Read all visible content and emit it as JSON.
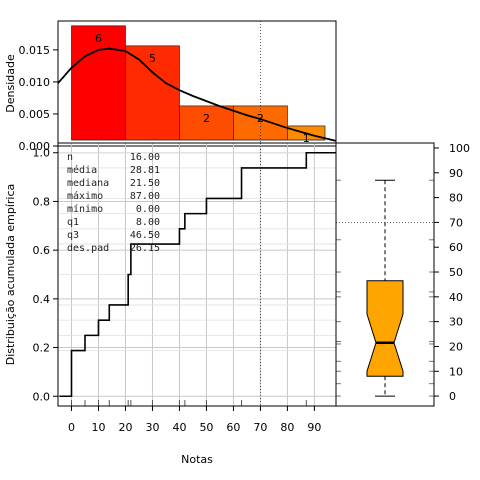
{
  "chart_data": [
    {
      "type": "histogram",
      "ylabel": "Densidade",
      "xlim": [
        -5,
        98
      ],
      "ylim": [
        0,
        0.0195
      ],
      "yticks": [
        0.0,
        0.005,
        0.01,
        0.015
      ],
      "ytick_labels": [
        "0.000",
        "0.005",
        "0.010",
        "0.015"
      ],
      "bins": [
        {
          "from": 0,
          "to": 20,
          "density": 0.01875,
          "count": "6",
          "color": "#ff0000"
        },
        {
          "from": 20,
          "to": 40,
          "density": 0.015625,
          "count": "5",
          "color": "#ff2a00"
        },
        {
          "from": 40,
          "to": 60,
          "density": 0.00625,
          "count": "2",
          "color": "#ff4d00"
        },
        {
          "from": 60,
          "to": 80,
          "density": 0.00625,
          "count": "2",
          "color": "#ff6a00"
        },
        {
          "from": 80,
          "to": 100,
          "density": 0.003125,
          "count": "1",
          "color": "#ff8c00"
        }
      ],
      "density_curve": [
        [
          -5,
          0.0098
        ],
        [
          0,
          0.0122
        ],
        [
          5,
          0.014
        ],
        [
          10,
          0.015
        ],
        [
          14,
          0.0152
        ],
        [
          20,
          0.0148
        ],
        [
          25,
          0.0135
        ],
        [
          30,
          0.0115
        ],
        [
          35,
          0.0098
        ],
        [
          40,
          0.0087
        ],
        [
          45,
          0.0078
        ],
        [
          50,
          0.007
        ],
        [
          55,
          0.0062
        ],
        [
          60,
          0.0055
        ],
        [
          65,
          0.0048
        ],
        [
          70,
          0.0042
        ],
        [
          75,
          0.0035
        ],
        [
          80,
          0.0028
        ],
        [
          85,
          0.0022
        ],
        [
          90,
          0.0016
        ],
        [
          98,
          0.0008
        ]
      ],
      "vline_x": 70
    },
    {
      "type": "line",
      "subtype": "ecdf",
      "xlabel": "Notas",
      "ylabel": "Distribuição acumulada empírica",
      "xlim": [
        -5,
        98
      ],
      "ylim": [
        -0.04,
        1.04
      ],
      "xticks": [
        0,
        10,
        20,
        30,
        40,
        50,
        60,
        70,
        80,
        90
      ],
      "xtick_labels": [
        "0",
        "10",
        "20",
        "30",
        "40",
        "50",
        "60",
        "70",
        "80",
        "90"
      ],
      "yticks": [
        0.0,
        0.2,
        0.4,
        0.6,
        0.8,
        1.0
      ],
      "ytick_labels": [
        "0.0",
        "0.2",
        "0.4",
        "0.6",
        "0.8",
        "1.0"
      ],
      "grid": true,
      "steps": [
        [
          0,
          0.1875
        ],
        [
          5,
          0.25
        ],
        [
          10,
          0.3125
        ],
        [
          14,
          0.375
        ],
        [
          21,
          0.5
        ],
        [
          22,
          0.625
        ],
        [
          30,
          0.625
        ],
        [
          40,
          0.6875
        ],
        [
          42,
          0.75
        ],
        [
          50,
          0.8125
        ],
        [
          63,
          0.9375
        ],
        [
          87,
          1.0
        ]
      ],
      "rug": [
        0,
        5,
        10,
        14,
        21,
        22,
        30,
        40,
        42,
        50,
        63,
        87
      ],
      "vline_x": 70,
      "stats": [
        {
          "label": "n",
          "value": "16.00"
        },
        {
          "label": "média",
          "value": "28.81"
        },
        {
          "label": "mediana",
          "value": "21.50"
        },
        {
          "label": "máximo",
          "value": "87.00"
        },
        {
          "label": "mínimo",
          "value": "0.00"
        },
        {
          "label": "q1",
          "value": "8.00"
        },
        {
          "label": "q3",
          "value": "46.50"
        },
        {
          "label": "des.pad",
          "value": "26.15"
        }
      ]
    },
    {
      "type": "boxplot",
      "ylim": [
        -4,
        102
      ],
      "yticks": [
        0,
        10,
        20,
        30,
        40,
        50,
        60,
        70,
        80,
        90,
        100
      ],
      "ytick_labels": [
        "0",
        "10",
        "20",
        "30",
        "40",
        "50",
        "60",
        "70",
        "80",
        "90",
        "100"
      ],
      "box": {
        "min": 0,
        "q1": 8,
        "median": 21.5,
        "q3": 46.5,
        "max": 87,
        "notch_low": 10,
        "notch_high": 33
      },
      "fill_color": "#ffa500",
      "hline_y": 70
    }
  ]
}
